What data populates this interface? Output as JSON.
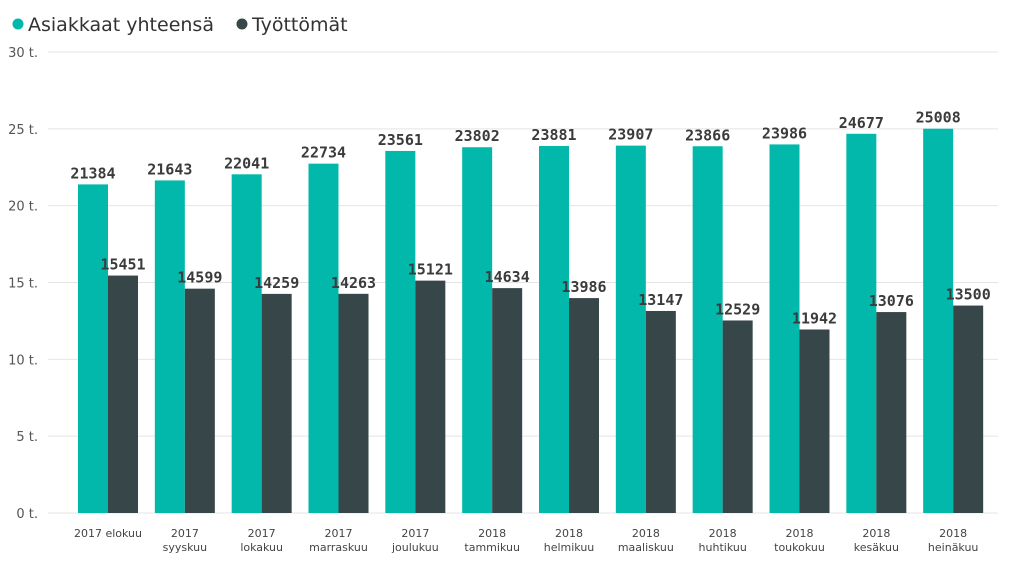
{
  "chart_data": {
    "type": "bar",
    "categories": [
      [
        "2017 elokuu"
      ],
      [
        "2017",
        "syyskuu"
      ],
      [
        "2017",
        "lokakuu"
      ],
      [
        "2017",
        "marraskuu"
      ],
      [
        "2017",
        "joulukuu"
      ],
      [
        "2018",
        "tammikuu"
      ],
      [
        "2018",
        "helmikuu"
      ],
      [
        "2018",
        "maaliskuu"
      ],
      [
        "2018",
        "huhtikuu"
      ],
      [
        "2018",
        "toukokuu"
      ],
      [
        "2018",
        "kesäkuu"
      ],
      [
        "2018",
        "heinäkuu"
      ]
    ],
    "series": [
      {
        "name": "Asiakkaat yhteensä",
        "color": "#01b8aa",
        "values": [
          21384,
          21643,
          22041,
          22734,
          23561,
          23802,
          23881,
          23907,
          23866,
          23986,
          24677,
          25008
        ]
      },
      {
        "name": "Työttömät",
        "color": "#374649",
        "values": [
          15451,
          14599,
          14259,
          14263,
          15121,
          14634,
          13986,
          13147,
          12529,
          11942,
          13076,
          13500
        ]
      }
    ],
    "ylim": [
      0,
      30000
    ],
    "yticks": [
      {
        "value": 0,
        "label": "0 t."
      },
      {
        "value": 5000,
        "label": "5 t."
      },
      {
        "value": 10000,
        "label": "10 t."
      },
      {
        "value": 15000,
        "label": "15 t."
      },
      {
        "value": 20000,
        "label": "20 t."
      },
      {
        "value": 25000,
        "label": "25 t."
      },
      {
        "value": 30000,
        "label": "30 t."
      }
    ],
    "grid": true,
    "legend_position": "top-left"
  }
}
